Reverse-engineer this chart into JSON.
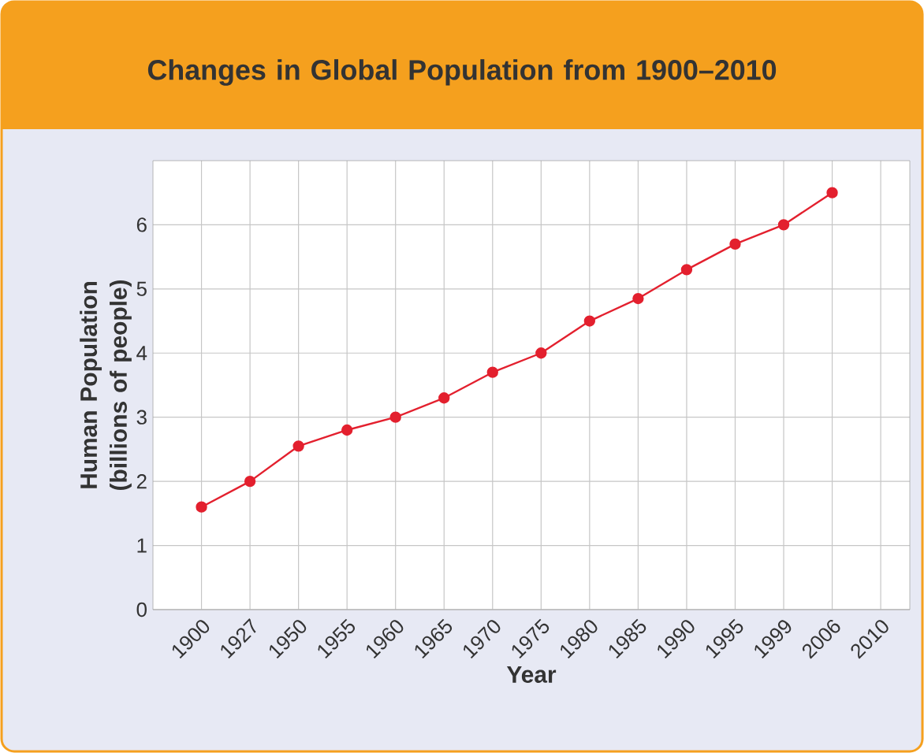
{
  "chart_data": {
    "type": "line",
    "title": "Changes in Global Population from 1900–2010",
    "xlabel": "Year",
    "ylabel": "Human Population (billions of people)",
    "categories": [
      "1900",
      "1927",
      "1950",
      "1955",
      "1960",
      "1965",
      "1970",
      "1975",
      "1980",
      "1985",
      "1990",
      "1995",
      "1999",
      "2006",
      "2010"
    ],
    "series": [
      {
        "color": "#e3202e",
        "values": [
          1.6,
          2.0,
          2.55,
          2.8,
          3.0,
          3.3,
          3.7,
          4.0,
          4.5,
          4.85,
          5.3,
          5.7,
          6.0,
          6.5,
          null
        ]
      }
    ],
    "ylim": [
      0,
      7
    ],
    "yticks": [
      0,
      1,
      2,
      3,
      4,
      5,
      6
    ],
    "grid": true,
    "marker": "circle",
    "line_style": "solid"
  }
}
